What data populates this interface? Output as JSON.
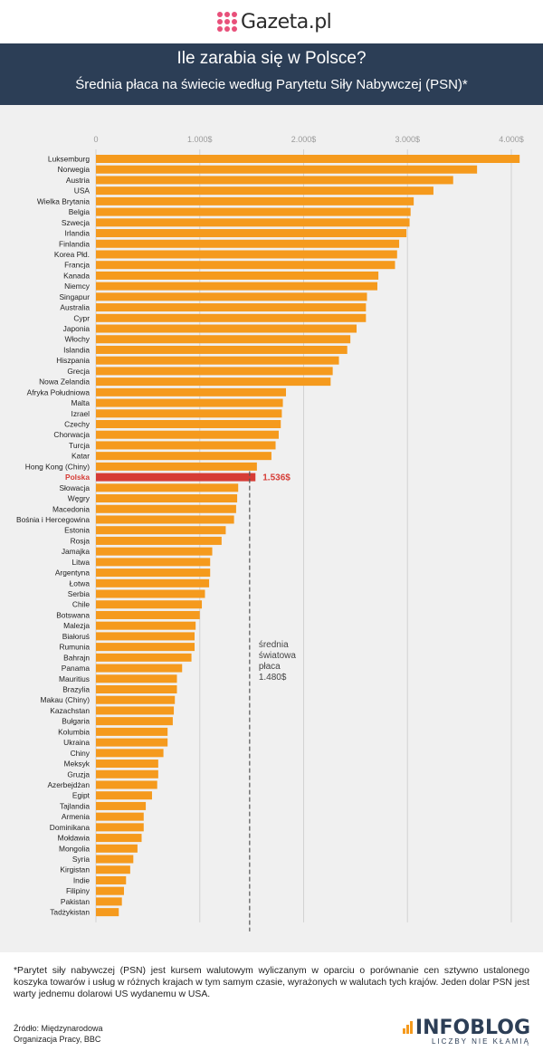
{
  "logo": {
    "text": "Gazeta.pl"
  },
  "header": {
    "title": "Ile zarabia się w Polsce?",
    "subtitle": "Średnia płaca na świecie według Parytetu Siły Nabywczej (PSN)*"
  },
  "chart_data": {
    "type": "bar",
    "orientation": "horizontal",
    "x_ticks": [
      "0",
      "1.000$",
      "2.000$",
      "3.000$",
      "4.000$"
    ],
    "x_tick_values": [
      0,
      1000,
      2000,
      3000,
      4000
    ],
    "xlim": [
      0,
      4100
    ],
    "categories": [
      "Luksemburg",
      "Norwegia",
      "Austria",
      "USA",
      "Wielka Brytania",
      "Belgia",
      "Szwecja",
      "Irlandia",
      "Finlandia",
      "Korea Płd.",
      "Francja",
      "Kanada",
      "Niemcy",
      "Singapur",
      "Australia",
      "Cypr",
      "Japonia",
      "Włochy",
      "Islandia",
      "Hiszpania",
      "Grecja",
      "Nowa Zelandia",
      "Afryka Południowa",
      "Malta",
      "Izrael",
      "Czechy",
      "Chorwacja",
      "Turcja",
      "Katar",
      "Hong Kong (Chiny)",
      "Polska",
      "Słowacja",
      "Węgry",
      "Macedonia",
      "Bośnia i Hercegowina",
      "Estonia",
      "Rosja",
      "Jamajka",
      "Litwa",
      "Argentyna",
      "Łotwa",
      "Serbia",
      "Chile",
      "Botswana",
      "Malezja",
      "Białoruś",
      "Rumunia",
      "Bahrajn",
      "Panama",
      "Mauritius",
      "Brazylia",
      "Makau (Chiny)",
      "Kazachstan",
      "Bułgaria",
      "Kolumbia",
      "Ukraina",
      "Chiny",
      "Meksyk",
      "Gruzja",
      "Azerbejdżan",
      "Egipt",
      "Tajlandia",
      "Armenia",
      "Dominikana",
      "Mołdawia",
      "Mongolia",
      "Syria",
      "Kirgistan",
      "Indie",
      "Filipiny",
      "Pakistan",
      "Tadżykistan"
    ],
    "values": [
      4080,
      3670,
      3440,
      3250,
      3060,
      3030,
      3020,
      2990,
      2920,
      2900,
      2880,
      2720,
      2710,
      2610,
      2600,
      2600,
      2510,
      2450,
      2420,
      2340,
      2280,
      2260,
      1830,
      1800,
      1790,
      1780,
      1760,
      1730,
      1690,
      1550,
      1536,
      1370,
      1360,
      1350,
      1330,
      1250,
      1210,
      1120,
      1100,
      1100,
      1090,
      1050,
      1020,
      1000,
      960,
      950,
      950,
      920,
      830,
      780,
      780,
      760,
      750,
      740,
      690,
      690,
      650,
      600,
      600,
      590,
      540,
      480,
      460,
      460,
      440,
      400,
      360,
      330,
      290,
      270,
      250,
      220
    ],
    "colors": {
      "bar": "#f59a1d",
      "highlight": "#d63c36",
      "grid": "#d2d2d2",
      "average_line": "#555555"
    },
    "highlight": {
      "category": "Polska",
      "label": "1.536$"
    },
    "average": {
      "value": 1480,
      "label_lines": [
        "średnia",
        "światowa",
        "płaca",
        "1.480$"
      ]
    }
  },
  "footer": {
    "note": "*Parytet siły nabywczej (PSN) jest kursem walutowym wyliczanym w oparciu o porównanie cen sztywno ustalonego koszyka towarów i usług w różnych krajach w tym samym czasie, wyrażonych w walutach tych krajów. Jeden dolar PSN jest warty jednemu dolarowi US wydanemu w USA.",
    "source_line1": "Źródło: Międzynarodowa",
    "source_line2": "Organizacja Pracy, BBC",
    "brand": "INFOBLOG",
    "brand_tagline": "LICZBY NIE KŁAMIĄ"
  }
}
